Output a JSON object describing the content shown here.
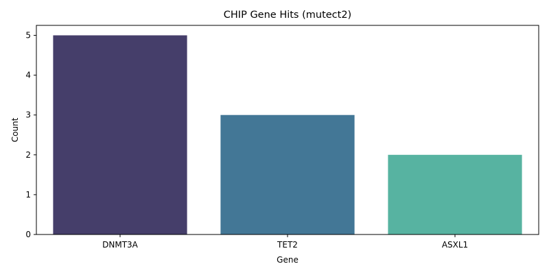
{
  "chart_data": {
    "type": "bar",
    "title": "CHIP Gene Hits (mutect2)",
    "xlabel": "Gene",
    "ylabel": "Count",
    "categories": [
      "DNMT3A",
      "TET2",
      "ASXL1"
    ],
    "values": [
      5,
      3,
      2
    ],
    "bar_colors": [
      "#453e6a",
      "#437796",
      "#57b3a1"
    ],
    "ylim": [
      0,
      5.25
    ],
    "yticks": [
      0,
      1,
      2,
      3,
      4,
      5
    ],
    "grid": false,
    "legend": "none"
  }
}
